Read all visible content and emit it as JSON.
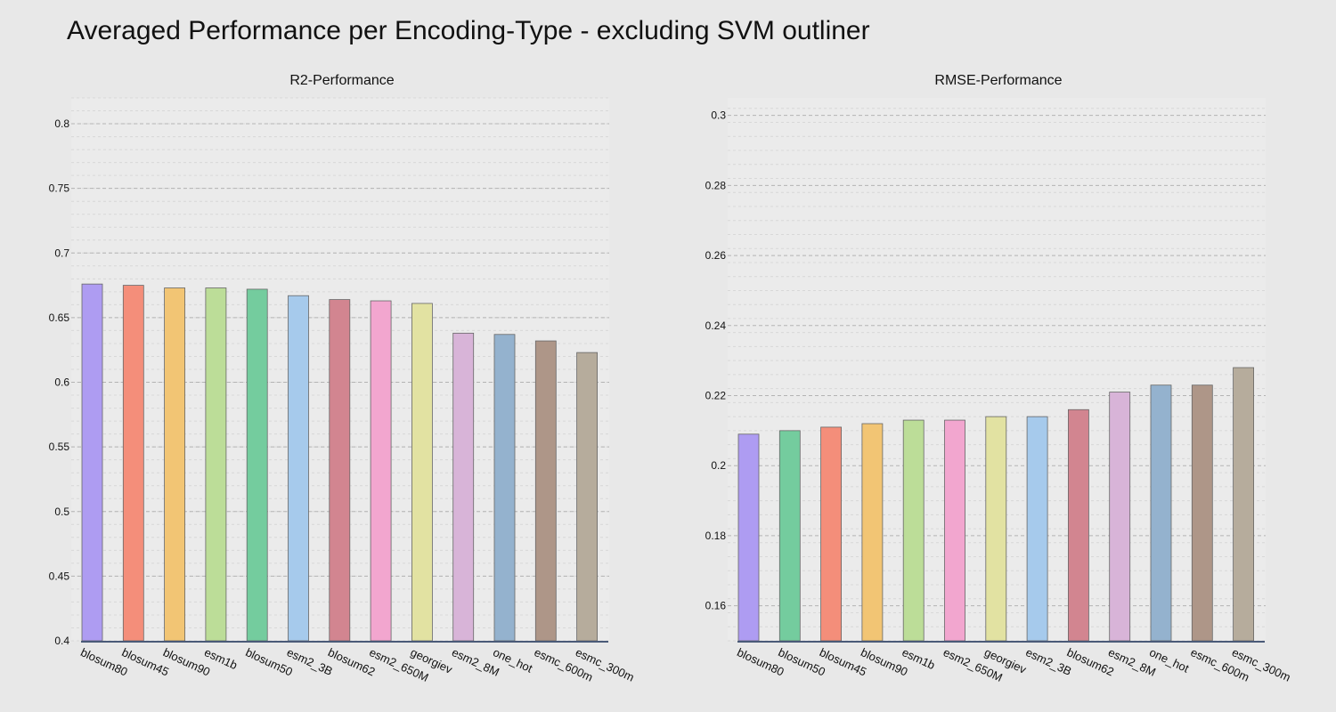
{
  "title": "Averaged Performance per Encoding-Type - excluding SVM outliner",
  "chart_data": [
    {
      "type": "bar",
      "title": "R2-Performance",
      "ylim": [
        0.4,
        0.82
      ],
      "yticks": [
        "0.4",
        "0.45",
        "0.5",
        "0.55",
        "0.6",
        "0.65",
        "0.7",
        "0.75",
        "0.8"
      ],
      "grid": true,
      "categories": [
        "blosum80",
        "blosum45",
        "blosum90",
        "esm1b",
        "blosum50",
        "esm2_3B",
        "blosum62",
        "esm2_650M",
        "georgiev",
        "esm2_8M",
        "one_hot",
        "esmc_600m",
        "esmc_300m"
      ],
      "values": [
        0.676,
        0.675,
        0.673,
        0.673,
        0.672,
        0.667,
        0.664,
        0.663,
        0.661,
        0.638,
        0.637,
        0.632,
        0.623
      ],
      "colors": [
        "#ae9cf2",
        "#f48e7a",
        "#f2c574",
        "#bcdd98",
        "#74cc9e",
        "#a6caec",
        "#d28590",
        "#f2a6cf",
        "#e2e2a2",
        "#d8b4d8",
        "#94b2ce",
        "#ae9688",
        "#b6ac9c"
      ]
    },
    {
      "type": "bar",
      "title": "RMSE-Performance",
      "ylim": [
        0.15,
        0.305
      ],
      "yticks": [
        "0.16",
        "0.18",
        "0.2",
        "0.22",
        "0.24",
        "0.26",
        "0.28",
        "0.3"
      ],
      "grid": true,
      "categories": [
        "blosum80",
        "blosum50",
        "blosum45",
        "blosum90",
        "esm1b",
        "esm2_650M",
        "georgiev",
        "esm2_3B",
        "blosum62",
        "esm2_8M",
        "one_hot",
        "esmc_600m",
        "esmc_300m"
      ],
      "values": [
        0.209,
        0.21,
        0.211,
        0.212,
        0.213,
        0.213,
        0.214,
        0.214,
        0.216,
        0.221,
        0.223,
        0.223,
        0.228
      ],
      "colors": [
        "#ae9cf2",
        "#74cc9e",
        "#f48e7a",
        "#f2c574",
        "#bcdd98",
        "#f2a6cf",
        "#e2e2a2",
        "#a6caec",
        "#d28590",
        "#d8b4d8",
        "#94b2ce",
        "#ae9688",
        "#b6ac9c"
      ]
    }
  ]
}
